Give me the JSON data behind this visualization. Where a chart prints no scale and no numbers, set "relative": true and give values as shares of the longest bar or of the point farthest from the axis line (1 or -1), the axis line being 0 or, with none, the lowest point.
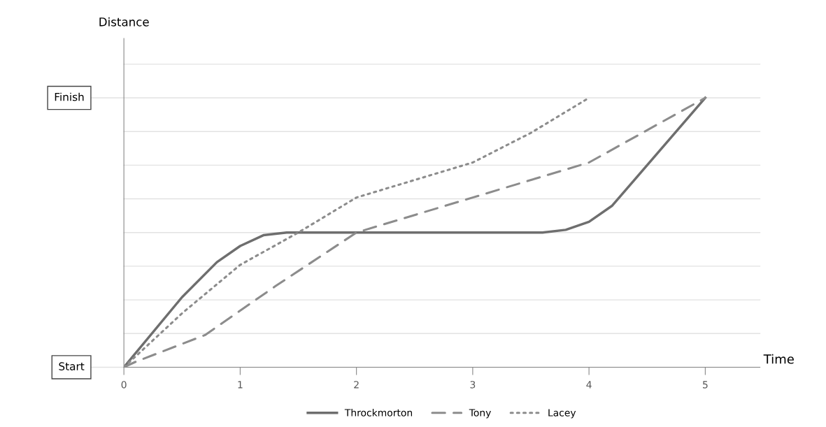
{
  "chart_data": {
    "type": "line",
    "xlabel": "Time",
    "annotations": [
      "Distance"
    ],
    "relative": true,
    "x": [
      0,
      0.5,
      0.8,
      1.0,
      1.2,
      1.4,
      2,
      3,
      3.6,
      3.8,
      4.0,
      4.2,
      5
    ],
    "series": [
      {
        "name": "Throckmorton",
        "color": "#6e6e6e",
        "line_style": "solid",
        "values": [
          0,
          0.26,
          0.39,
          0.45,
          0.49,
          0.5,
          0.5,
          0.5,
          0.5,
          0.51,
          0.54,
          0.6,
          1.0
        ]
      },
      {
        "name": "Tony",
        "color": "#8c8c8c",
        "line_style": "dashed",
        "x": [
          0,
          0.1,
          0.7,
          1.3,
          2,
          3,
          4,
          5
        ],
        "values": [
          0,
          0.02,
          0.12,
          0.3,
          0.5,
          0.63,
          0.76,
          1.0
        ]
      },
      {
        "name": "Lacey",
        "color": "#8c8c8c",
        "line_style": "dotted",
        "x": [
          0,
          0.5,
          1.0,
          1.5,
          2,
          3,
          3.5,
          4
        ],
        "values": [
          0,
          0.2,
          0.38,
          0.5,
          0.63,
          0.76,
          0.87,
          1.0
        ]
      }
    ],
    "xlim": [
      0,
      5.47
    ],
    "xticks": [
      0,
      1,
      2,
      3,
      4,
      5
    ],
    "ref_lines": [
      {
        "axis": "y",
        "value": 0,
        "label": "Start",
        "color": "#e2e2e2"
      },
      {
        "axis": "y",
        "value": 0.125,
        "color": "#e2e2e2"
      },
      {
        "axis": "y",
        "value": 0.25,
        "color": "#e2e2e2"
      },
      {
        "axis": "y",
        "value": 0.375,
        "color": "#e2e2e2"
      },
      {
        "axis": "y",
        "value": 0.5,
        "color": "#e2e2e2"
      },
      {
        "axis": "y",
        "value": 0.625,
        "color": "#e2e2e2"
      },
      {
        "axis": "y",
        "value": 0.75,
        "color": "#e2e2e2"
      },
      {
        "axis": "y",
        "value": 0.875,
        "color": "#e2e2e2"
      },
      {
        "axis": "y",
        "value": 1,
        "label": "Finish",
        "color": "#e2e2e2"
      },
      {
        "axis": "y",
        "value": 1.125,
        "color": "#e2e2e2"
      }
    ],
    "legend": "bottom",
    "marker": "none"
  }
}
